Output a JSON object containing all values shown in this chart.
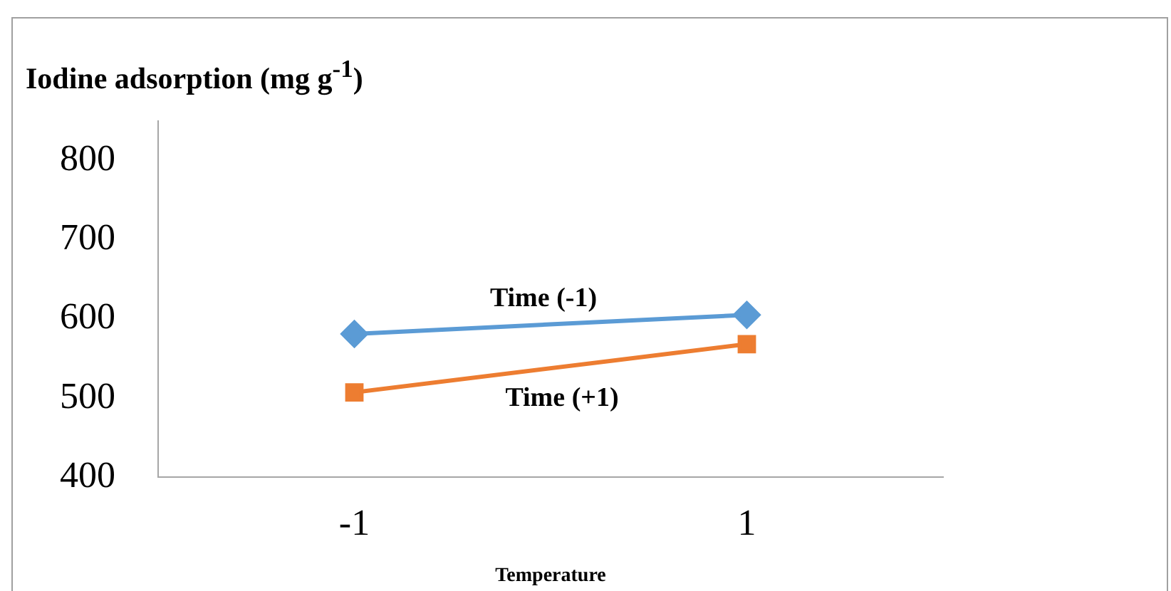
{
  "chart_data": {
    "type": "line",
    "ylabel": "Iodine adsorption (mg g$^{-1}$)",
    "xlabel": "Temperature",
    "categories": [
      "-1",
      "1"
    ],
    "series": [
      {
        "name": "Time (-1)",
        "color": "#5b9bd5",
        "values": [
          581,
          605
        ],
        "marker": "diamond"
      },
      {
        "name": "Time (+1)",
        "color": "#ed7d31",
        "values": [
          507,
          568
        ],
        "marker": "square"
      }
    ],
    "ylim": [
      400,
      850
    ],
    "yticks": [
      400,
      500,
      600,
      700,
      800
    ],
    "grid": false
  }
}
